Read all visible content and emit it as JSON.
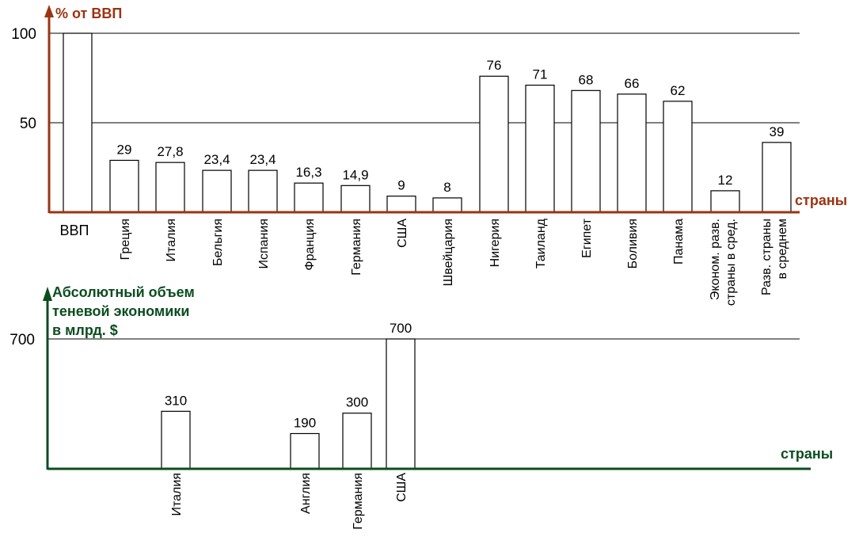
{
  "colors": {
    "axis_top": "#9b3412",
    "axis_bottom": "#0b4d1f",
    "label_top": "#9b3412",
    "label_bottom": "#0b4d1f",
    "bar_fill": "#ffffff",
    "bar_stroke": "#000000",
    "grid": "#000000"
  },
  "chart_data": [
    {
      "type": "bar",
      "ylabel": "% от ВВП",
      "xlabel": "страны",
      "ylim": [
        0,
        100
      ],
      "yticks": [
        "50",
        "100"
      ],
      "grid": true,
      "categories": [
        "ВВП",
        "Греция",
        "Италия",
        "Бельгия",
        "Испания",
        "Франция",
        "Германия",
        "США",
        "Швейцария",
        "Нигерия",
        "Таиланд",
        "Египет",
        "Боливия",
        "Панама",
        "Эконом. разв. страны в сред.",
        "Разв. страны в среднем"
      ],
      "values": [
        100,
        29,
        27.8,
        23.4,
        23.4,
        16.3,
        14.9,
        9,
        8,
        76,
        71,
        68,
        66,
        62,
        12,
        39
      ],
      "value_labels": [
        "",
        "29",
        "27,8",
        "23,4",
        "23,4",
        "16,3",
        "14,9",
        "9",
        "8",
        "76",
        "71",
        "68",
        "66",
        "62",
        "12",
        "39"
      ]
    },
    {
      "type": "bar",
      "ylabel": "Абсолютный объем теневой экономики в млрд. $",
      "xlabel": "страны",
      "ylim": [
        0,
        700
      ],
      "yticks": [
        "700"
      ],
      "grid": true,
      "categories": [
        "Италия",
        "Англия",
        "Германия",
        "США"
      ],
      "values": [
        310,
        190,
        300,
        700
      ],
      "value_labels": [
        "310",
        "190",
        "300",
        "700"
      ]
    }
  ]
}
